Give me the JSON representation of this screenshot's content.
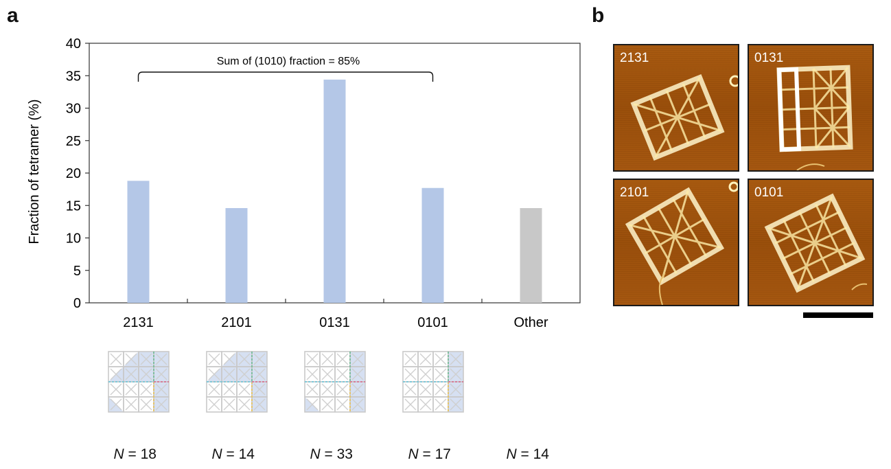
{
  "panel_a": {
    "letter": "a"
  },
  "panel_b": {
    "letter": "b"
  },
  "chart_data": {
    "type": "bar",
    "ylabel": "Fraction of tetramer (%)",
    "xlabel": "",
    "ylim": [
      0,
      40
    ],
    "yticks": [
      0,
      5,
      10,
      15,
      20,
      25,
      30,
      35,
      40
    ],
    "categories": [
      "2131",
      "2101",
      "0131",
      "0101",
      "Other"
    ],
    "values": [
      18.8,
      14.6,
      34.4,
      17.7,
      14.6
    ],
    "bar_colors": [
      "#b4c7e7",
      "#b4c7e7",
      "#b4c7e7",
      "#b4c7e7",
      "#c8c8c8"
    ],
    "annotation": "Sum of (1010) fraction = 85%",
    "grid": false
  },
  "counts": [
    {
      "prefix": "N",
      "text": " = 18"
    },
    {
      "prefix": "N",
      "text": " = 14"
    },
    {
      "prefix": "N",
      "text": " = 33"
    },
    {
      "prefix": "N",
      "text": " = 17"
    },
    {
      "prefix": "N",
      "text": " = 14"
    }
  ],
  "afm_images": [
    {
      "label": "2131"
    },
    {
      "label": "0131"
    },
    {
      "label": "2101"
    },
    {
      "label": "0101"
    }
  ],
  "schematics": [
    {
      "id": "2131",
      "shaded_cells": [
        [
          0,
          2
        ],
        [
          0,
          3
        ],
        [
          1,
          1
        ],
        [
          1,
          2
        ],
        [
          1,
          3
        ],
        [
          2,
          3
        ],
        [
          3,
          3
        ]
      ],
      "tri_cells": [
        [
          0,
          1
        ],
        [
          1,
          0
        ],
        [
          3,
          0
        ]
      ],
      "tri_dir": [
        "br",
        "br",
        "tl"
      ]
    },
    {
      "id": "2101",
      "shaded_cells": [
        [
          0,
          2
        ],
        [
          0,
          3
        ],
        [
          1,
          1
        ],
        [
          1,
          2
        ],
        [
          1,
          3
        ],
        [
          2,
          3
        ],
        [
          3,
          3
        ]
      ],
      "tri_cells": [
        [
          0,
          1
        ],
        [
          1,
          0
        ]
      ],
      "tri_dir": [
        "br",
        "br"
      ]
    },
    {
      "id": "0131",
      "shaded_cells": [
        [
          0,
          3
        ],
        [
          1,
          3
        ],
        [
          2,
          3
        ],
        [
          3,
          3
        ]
      ],
      "tri_cells": [
        [
          3,
          0
        ]
      ],
      "tri_dir": [
        "tl"
      ]
    },
    {
      "id": "0101",
      "shaded_cells": [
        [
          0,
          3
        ],
        [
          1,
          3
        ],
        [
          2,
          3
        ],
        [
          3,
          3
        ]
      ],
      "tri_cells": [],
      "tri_dir": []
    }
  ]
}
